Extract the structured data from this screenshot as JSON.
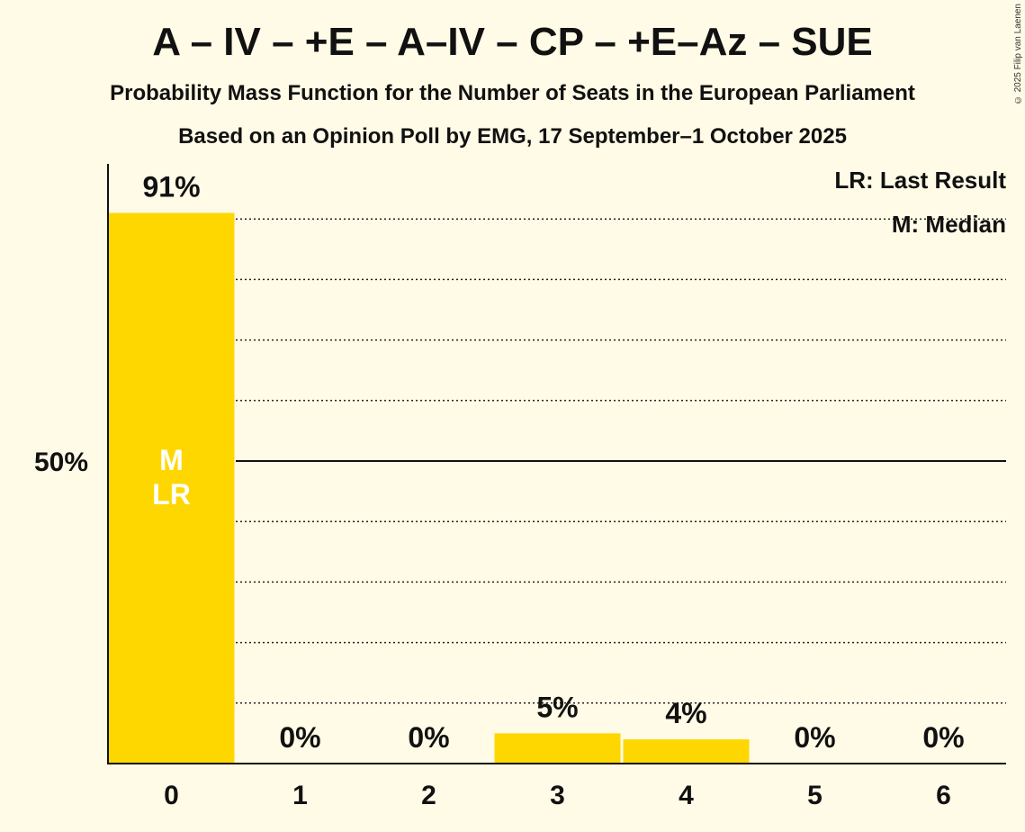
{
  "title": "A – IV – +E – A–IV – CP – +E–Az – SUE",
  "subtitle": "Probability Mass Function for the Number of Seats in the European Parliament",
  "source": "Based on an Opinion Poll by EMG, 17 September–1 October 2025",
  "copyright": "© 2025 Filip van Laenen",
  "legend": {
    "last_result": "LR: Last Result",
    "median": "M: Median"
  },
  "colors": {
    "bar": "#ffd700",
    "background": "#fffbe6",
    "axis": "#111111"
  },
  "chart_data": {
    "type": "bar",
    "categories": [
      "0",
      "1",
      "2",
      "3",
      "4",
      "5",
      "6"
    ],
    "values": [
      91,
      0,
      0,
      5,
      4,
      0,
      0
    ],
    "value_labels": [
      "91%",
      "0%",
      "0%",
      "5%",
      "4%",
      "0%",
      "0%"
    ],
    "ylim": [
      0,
      100
    ],
    "y_ticks": [
      {
        "value": 50,
        "label": "50%"
      }
    ],
    "gridlines": "dotted every 10%",
    "median_category": "0",
    "last_result_category": "0",
    "in_bar_labels": [
      "M",
      "LR"
    ]
  }
}
